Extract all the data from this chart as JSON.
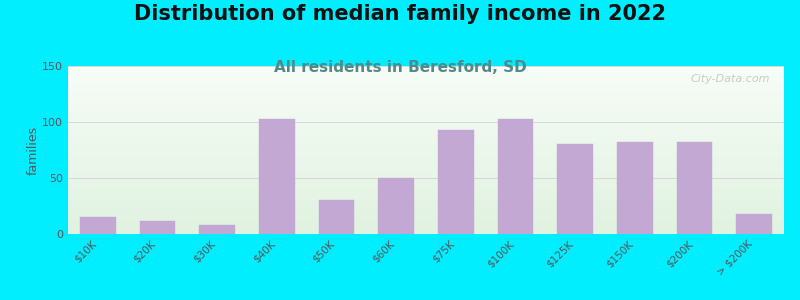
{
  "title": "Distribution of median family income in 2022",
  "subtitle": "All residents in Beresford, SD",
  "ylabel": "families",
  "categories": [
    "$10K",
    "$20K",
    "$30K",
    "$40K",
    "$50K",
    "$60K",
    "$75K",
    "$100K",
    "$125K",
    "$150K",
    "$200K",
    "> $200K"
  ],
  "values": [
    15,
    12,
    8,
    103,
    30,
    50,
    93,
    103,
    80,
    82,
    82,
    18
  ],
  "bar_color": "#C4A8D4",
  "bar_edge_color": "#C4A8D4",
  "ylim": [
    0,
    150
  ],
  "yticks": [
    0,
    50,
    100,
    150
  ],
  "background_color": "#00EEFF",
  "plot_bg_color_topleft": "#D8EDD8",
  "plot_bg_color_topright": "#F0F4F0",
  "plot_bg_color_bottomleft": "#E8F4E8",
  "plot_bg_color_bottomright": "#FAFFFE",
  "watermark": "City-Data.com",
  "title_fontsize": 15,
  "subtitle_fontsize": 11,
  "subtitle_color": "#558888",
  "tick_color": "#555555",
  "ylabel_fontsize": 9,
  "grid_color": "#CCCCCC"
}
